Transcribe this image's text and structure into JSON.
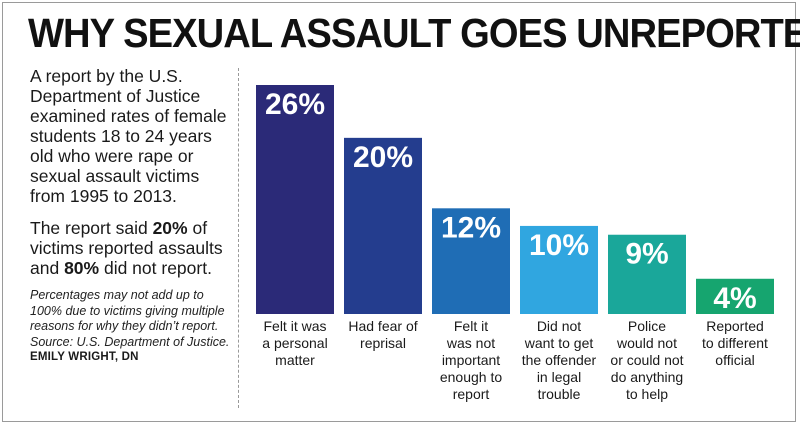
{
  "title": "WHY SEXUAL ASSAULT GOES UNREPORTED",
  "sidebar": {
    "intro": "A report by the U.S. Department of Justice examined rates of female students 18 to 24 years old who were rape or sexual assault victims from 1995 to 2013.",
    "report_prefix": "The report said ",
    "report_pct1": "20%",
    "report_mid": " of victims reported assaults and ",
    "report_pct2": "80%",
    "report_suffix": " did not report.",
    "note": "Percentages may not add up to 100% due to victims giving multiple reasons for why they didn’t report. Source: U.S. Department of Justice.",
    "credit": "EMILY WRIGHT, DN"
  },
  "chart_data": {
    "type": "bar",
    "categories": [
      [
        "Felt it was",
        "a personal",
        "matter"
      ],
      [
        "Had fear of",
        "reprisal"
      ],
      [
        "Felt it",
        "was not",
        "important",
        "enough to",
        "report"
      ],
      [
        "Did not",
        "want to get",
        "the offender",
        "in legal",
        "trouble"
      ],
      [
        "Police",
        "would not",
        "or could not",
        "do anything",
        "to help"
      ],
      [
        "Reported",
        "to different",
        "official"
      ]
    ],
    "values": [
      26,
      20,
      12,
      10,
      9,
      4
    ],
    "value_labels": [
      "26%",
      "20%",
      "12%",
      "10%",
      "9%",
      "4%"
    ],
    "colors": [
      "#2b2a78",
      "#243d8e",
      "#1f6db5",
      "#30a6e0",
      "#1aa79a",
      "#16a56f"
    ],
    "ylim": [
      0,
      26
    ],
    "grid": false
  }
}
